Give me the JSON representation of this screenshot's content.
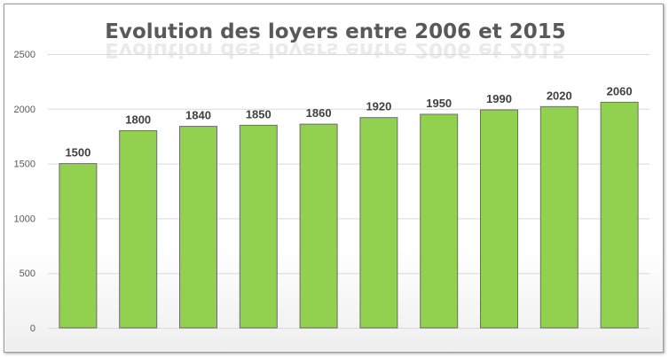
{
  "chart_data": {
    "type": "bar",
    "title": "Evolution des loyers entre 2006 et 2015",
    "xlabel": "",
    "ylabel": "",
    "ylim": [
      0,
      2500
    ],
    "yticks": [
      0,
      500,
      1000,
      1500,
      2000,
      2500
    ],
    "grid": true,
    "legend": "none",
    "bar_color": "#92d050",
    "values": [
      1500,
      1800,
      1840,
      1850,
      1860,
      1920,
      1950,
      1990,
      2020,
      2060
    ],
    "data_labels": [
      "1500",
      "1800",
      "1840",
      "1850",
      "1860",
      "1920",
      "1950",
      "1990",
      "2020",
      "2060"
    ],
    "ytick_labels": [
      "0",
      "500",
      "1000",
      "1500",
      "2000",
      "2500"
    ]
  }
}
